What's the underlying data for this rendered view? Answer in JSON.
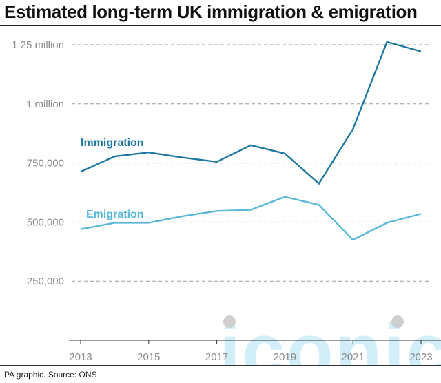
{
  "header": {
    "title": "Estimated long-term UK immigration & emigration"
  },
  "footer": {
    "source": "PA graphic. Source: ONS"
  },
  "watermark": {
    "text": "iconic",
    "color": "#d2eef8"
  },
  "chart_data": {
    "type": "line",
    "title": "Estimated long-term UK immigration & emigration",
    "xlabel": "",
    "ylabel": "",
    "x": [
      2013,
      2014,
      2015,
      2016,
      2017,
      2018,
      2019,
      2020,
      2021,
      2022,
      2023
    ],
    "x_tick_labels": [
      "2013",
      "2015",
      "2017",
      "2019",
      "2021",
      "2023"
    ],
    "y_ticks": [
      250000,
      500000,
      750000,
      1000000,
      1250000
    ],
    "y_tick_labels": [
      "250,000",
      "500,000",
      "750,000",
      "1 million",
      "1.25 million"
    ],
    "ylim": [
      0,
      1250000
    ],
    "grid": "horizontal dashed",
    "series": [
      {
        "name": "Immigration",
        "color": "#1f78a4",
        "values": [
          713000,
          778000,
          795000,
          773000,
          755000,
          825000,
          790000,
          663000,
          893000,
          1262000,
          1222000
        ]
      },
      {
        "name": "Emigration",
        "color": "#5bb7d8",
        "values": [
          470000,
          497000,
          497000,
          525000,
          547000,
          552000,
          607000,
          573000,
          425000,
          497000,
          535000
        ]
      }
    ]
  }
}
